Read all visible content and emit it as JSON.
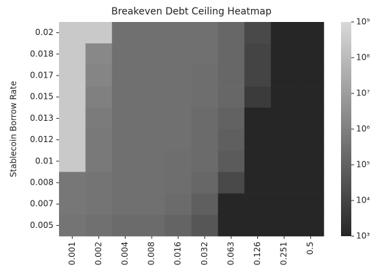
{
  "chart_data": {
    "type": "heatmap",
    "title": "Breakeven Debt Ceiling Heatmap",
    "y_label": "Stablecoin Borrow Rate",
    "x_categories": [
      "0.001",
      "0.002",
      "0.004",
      "0.008",
      "0.016",
      "0.032",
      "0.063",
      "0.126",
      "0.251",
      "0.5"
    ],
    "y_categories": [
      "0.02",
      "0.018",
      "0.017",
      "0.015",
      "0.013",
      "0.012",
      "0.01",
      "0.008",
      "0.007",
      "0.005"
    ],
    "values": [
      [
        300000000,
        300000000,
        300000,
        300000,
        300000,
        300000,
        150000,
        15000,
        1000,
        1000
      ],
      [
        300000000,
        2000000,
        300000,
        300000,
        300000,
        300000,
        150000,
        10000,
        1000,
        1000
      ],
      [
        300000000,
        1500000,
        300000,
        300000,
        300000,
        250000,
        150000,
        10000,
        1000,
        1000
      ],
      [
        300000000,
        1000000,
        300000,
        300000,
        300000,
        250000,
        150000,
        5000,
        1000,
        1000
      ],
      [
        300000000,
        700000,
        300000,
        300000,
        300000,
        200000,
        100000,
        1000,
        1000,
        1000
      ],
      [
        300000000,
        600000,
        300000,
        300000,
        300000,
        200000,
        80000,
        1000,
        1000,
        1000
      ],
      [
        300000000,
        600000,
        300000,
        300000,
        250000,
        200000,
        60000,
        1000,
        1000,
        1000
      ],
      [
        500000,
        400000,
        300000,
        300000,
        250000,
        150000,
        15000,
        1000,
        1000,
        1000
      ],
      [
        500000,
        400000,
        300000,
        300000,
        200000,
        80000,
        1000,
        1000,
        1000,
        1000
      ],
      [
        400000,
        300000,
        200000,
        200000,
        120000,
        40000,
        1000,
        1000,
        1000,
        1000
      ]
    ],
    "zlim": [
      1000,
      1000000000
    ],
    "log_scale": true,
    "zticks": [
      {
        "value": 1000,
        "label": "10³"
      },
      {
        "value": 10000,
        "label": "10⁴"
      },
      {
        "value": 100000,
        "label": "10⁵"
      },
      {
        "value": 1000000,
        "label": "10⁶"
      },
      {
        "value": 10000000,
        "label": "10⁷"
      },
      {
        "value": 100000000,
        "label": "10⁸"
      },
      {
        "value": 1000000000,
        "label": "10⁹"
      }
    ],
    "color_low": "#262626",
    "color_high": "#d9d9d9"
  }
}
